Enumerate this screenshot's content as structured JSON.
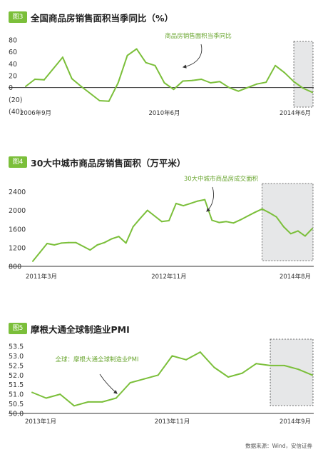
{
  "source": "数据来源：Wind，安信证券",
  "chart_data": [
    {
      "type": "line",
      "badge": "图3",
      "title": "全国商品房销售面积当季同比（%）",
      "series_label": "商品房销售面积当季同比",
      "line_color": "#7bbf3a",
      "ylim": [
        -40,
        80
      ],
      "y_ticks": [
        "80",
        "60",
        "40",
        "20",
        "0",
        "(20)",
        "(40)"
      ],
      "y_tick_values": [
        80,
        60,
        40,
        20,
        0,
        -20,
        -40
      ],
      "x_tick_labels": [
        "2006年9月",
        "2010年6月",
        "2014年6月"
      ],
      "x_tick_index": [
        0,
        15,
        31
      ],
      "forecast_from_index": 29,
      "values": [
        2,
        14,
        13,
        32,
        51,
        15,
        2,
        -10,
        -22,
        -23,
        8,
        54,
        65,
        42,
        37,
        8,
        -3,
        11,
        12,
        14,
        8,
        10,
        0,
        -6,
        0,
        6,
        9,
        37,
        25,
        10,
        -1,
        -8
      ]
    },
    {
      "type": "line",
      "badge": "图4",
      "title": "30大中城市商品房销售面积（万平米）",
      "series_label": "30大中城市商品房成交面积",
      "line_color": "#7bbf3a",
      "ylim": [
        800,
        2500
      ],
      "y_ticks": [
        "2400",
        "2000",
        "1600",
        "1200",
        "800"
      ],
      "y_tick_values": [
        2400,
        2000,
        1600,
        1200,
        800
      ],
      "x_tick_labels": [
        "2011年3月",
        "2012年11月",
        "2014年8月"
      ],
      "x_tick_index": [
        0,
        19,
        38
      ],
      "forecast_from_index": 32,
      "values": [
        910,
        1100,
        1290,
        1260,
        1300,
        1310,
        1310,
        1230,
        1150,
        1260,
        1310,
        1390,
        1440,
        1300,
        1650,
        1830,
        2000,
        1880,
        1760,
        1780,
        2150,
        2100,
        2150,
        2200,
        2230,
        1790,
        1740,
        1760,
        1730,
        1800,
        1880,
        1960,
        2030,
        1950,
        1860,
        1650,
        1500,
        1560,
        1450,
        1610
      ]
    },
    {
      "type": "line",
      "badge": "图5",
      "title": "摩根大通全球制造业PMI",
      "series_label": "全球：摩根大通全球制造业PMI",
      "line_color": "#7bbf3a",
      "ylim": [
        50.0,
        53.5
      ],
      "y_ticks": [
        "53.5",
        "53.0",
        "52.5",
        "52.0",
        "51.5",
        "51.0",
        "50.5",
        "50.0"
      ],
      "y_tick_values": [
        53.5,
        53.0,
        52.5,
        52.0,
        51.5,
        51.0,
        50.5,
        50.0
      ],
      "x_tick_labels": [
        "2013年1月",
        "2013年11月",
        "2014年9月"
      ],
      "x_tick_index": [
        0,
        10,
        20
      ],
      "forecast_from_index": 17,
      "values": [
        51.1,
        50.8,
        51.0,
        50.4,
        50.6,
        50.6,
        50.8,
        51.6,
        51.8,
        52.0,
        53.0,
        52.8,
        53.2,
        52.4,
        51.9,
        52.1,
        52.6,
        52.5,
        52.5,
        52.3,
        52.0
      ]
    }
  ]
}
